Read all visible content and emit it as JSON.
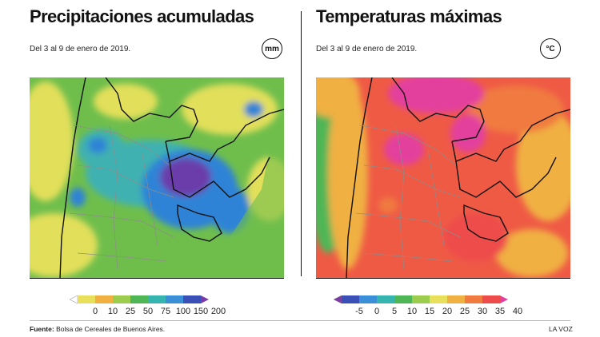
{
  "left": {
    "title": "Precipitaciones acumuladas",
    "subtitle": "Del 3 al 9 de enero de 2019.",
    "unit": "mm",
    "legend": {
      "ticks": [
        "0",
        "10",
        "25",
        "50",
        "75",
        "100",
        "150",
        "200"
      ],
      "colors": [
        "#ffffff",
        "#e8e05a",
        "#f0b042",
        "#9ccc4e",
        "#4fb656",
        "#35b4b0",
        "#3b8fd8",
        "#3a4fb8",
        "#7a3aa8"
      ]
    },
    "map_scale": {
      "background": "#6fbe4c",
      "low": "#e2df5a",
      "mid": "#3fb1b1",
      "high": "#2f83d6",
      "peak": "#6b3eaa"
    }
  },
  "right": {
    "title": "Temperaturas máximas",
    "subtitle": "Del 3 al 9 de enero de 2019.",
    "unit": "°C",
    "legend": {
      "ticks": [
        "-5",
        "0",
        "5",
        "10",
        "15",
        "20",
        "25",
        "30",
        "35",
        "40"
      ],
      "colors": [
        "#7a3aa8",
        "#3a4fb8",
        "#3b8fd8",
        "#35b4b0",
        "#4fb656",
        "#9ccc4e",
        "#e8e05a",
        "#f0b042",
        "#f07a40",
        "#ee4b4b",
        "#e3409e"
      ]
    },
    "map_scale": {
      "background": "#ef5a45",
      "cool": "#4fb656",
      "mild": "#f0b042",
      "warm": "#ee4b4b",
      "hot": "#e3409e"
    }
  },
  "footer": {
    "source_label": "Fuente:",
    "source_text": "Bolsa de Cereales de Buenos Aires.",
    "credit": "LA VOZ"
  }
}
